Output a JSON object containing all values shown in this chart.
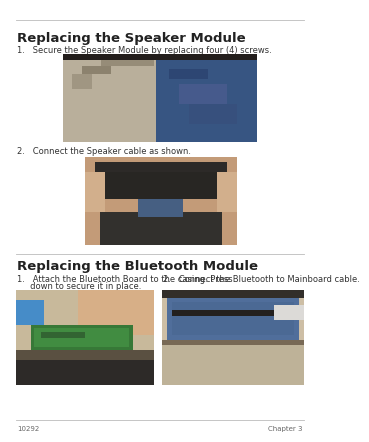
{
  "page_bg": "#ffffff",
  "page_number_left": "10292",
  "page_number_right": "Chapter 3",
  "rule_color": "#bbbbbb",
  "section1_title": "Replacing the Speaker Module",
  "section1_title_size": 9.5,
  "step1a": "1.   Secure the Speaker Module by replacing four (4) screws.",
  "step1b": "2.   Connect the Speaker cable as shown.",
  "step_font": 6.0,
  "section2_title": "Replacing the Bluetooth Module",
  "section2_title_size": 9.5,
  "step2a_line1": "1.   Attach the Bluetooth Board to the casing. Press",
  "step2a_line2": "     down to secure it in place.",
  "step2b": "2.   Connect the Bluetooth to Mainboard cable.",
  "step2_font": 6.0,
  "red": "#cc0000"
}
